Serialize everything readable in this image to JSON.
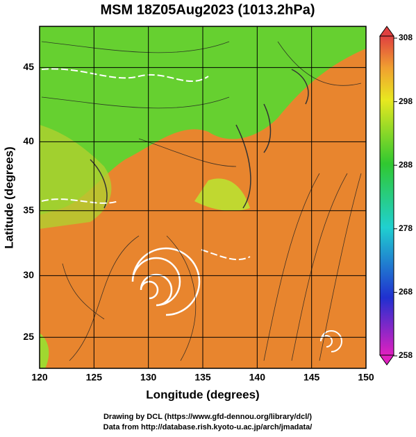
{
  "title": "MSM 18Z05Aug2023 (1013.2hPa)",
  "x_axis": {
    "label": "Longitude (degrees)",
    "lim": [
      120,
      150
    ],
    "ticks": [
      120,
      125,
      130,
      135,
      140,
      145,
      150
    ]
  },
  "y_axis": {
    "label": "Latitude  (degrees)",
    "lim": [
      22.4,
      47.6
    ],
    "ticks": [
      25,
      30,
      35,
      40,
      45
    ],
    "projection": "mercator"
  },
  "colorbar": {
    "lim": [
      258,
      308
    ],
    "ticks": [
      258,
      268,
      278,
      288,
      298,
      308
    ]
  },
  "credits": [
    "Drawing by DCL (https://www.gfd-dennou.org/library/dcl/)",
    "Data from http://database.rish.kyoto-u.ac.jp/arch/jmadata/"
  ]
}
